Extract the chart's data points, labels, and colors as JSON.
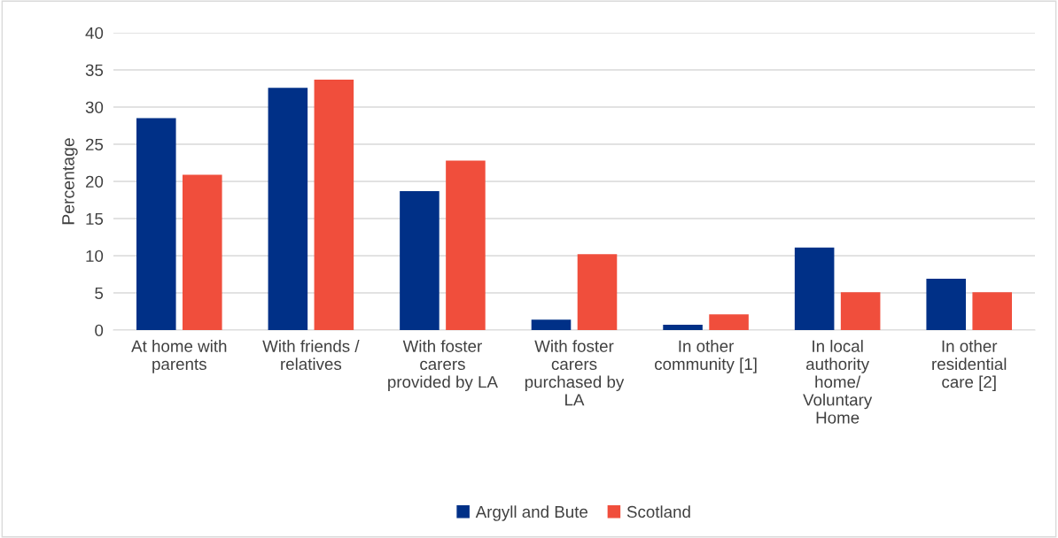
{
  "chart_data": {
    "type": "bar",
    "ylabel": "Percentage",
    "categories": [
      "At home with\nparents",
      "With friends /\nrelatives",
      "With foster\ncarers\nprovided by LA",
      "With foster\ncarers\npurchased by\nLA",
      "In other\ncommunity [1]",
      "In local\nauthority\nhome/\nVoluntary\nHome",
      "In other\nresidential\ncare [2]"
    ],
    "series": [
      {
        "name": "Argyll and Bute",
        "color": "#003087",
        "values": [
          28.5,
          32.6,
          18.7,
          1.4,
          0.7,
          11.1,
          6.9
        ]
      },
      {
        "name": "Scotland",
        "color": "#f04e3c",
        "values": [
          20.9,
          33.7,
          22.8,
          10.2,
          2.1,
          5.1,
          5.1
        ]
      }
    ],
    "ylim": [
      0,
      40
    ],
    "yticks": [
      0,
      5,
      10,
      15,
      20,
      25,
      30,
      35,
      40
    ],
    "grid": "y",
    "legend": "bottom"
  }
}
